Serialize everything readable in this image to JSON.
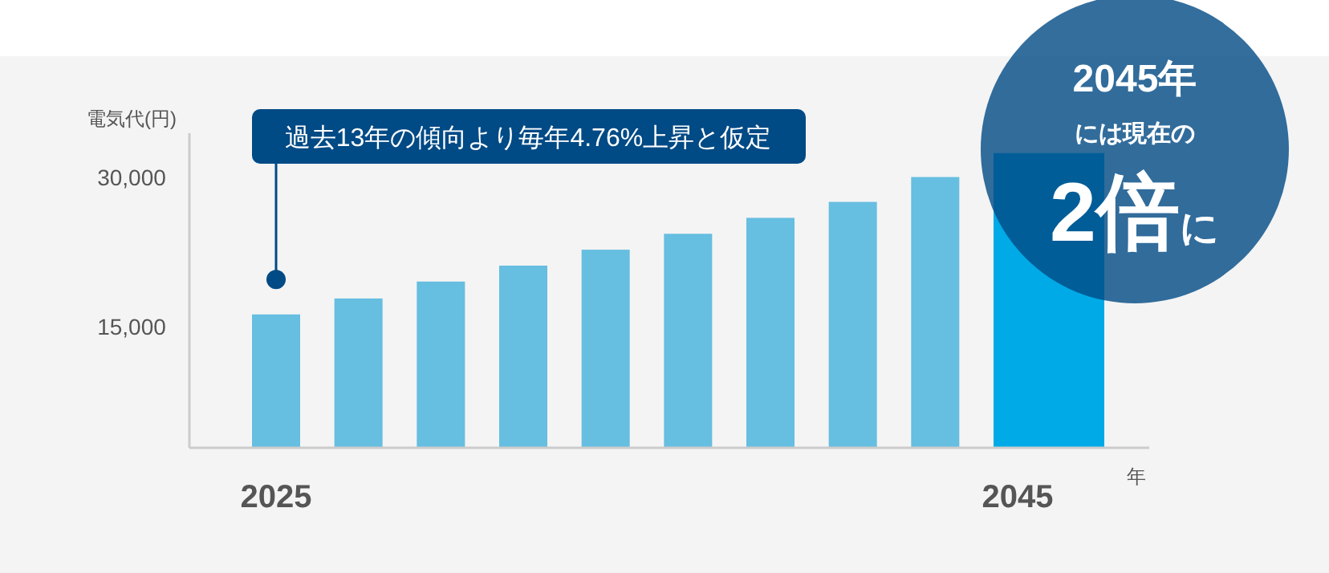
{
  "chart_data": {
    "type": "bar",
    "ylabel": "電気代(円)",
    "xlabel": "年",
    "categories": [
      "2025",
      null,
      null,
      null,
      null,
      null,
      null,
      null,
      null,
      "2045"
    ],
    "values": [
      16200,
      17800,
      19500,
      21100,
      22700,
      24300,
      25900,
      27500,
      30000,
      32400
    ],
    "colors": [
      "#66bee0",
      "#66bee0",
      "#66bee0",
      "#66bee0",
      "#66bee0",
      "#66bee0",
      "#66bee0",
      "#66bee0",
      "#66bee0",
      "#00aae6"
    ],
    "ylim": [
      2800,
      34400
    ],
    "yticks": [
      {
        "value": 15000,
        "label": "15,000"
      },
      {
        "value": 30000,
        "label": "30,000"
      }
    ],
    "grid": false,
    "annotations": [
      {
        "text": "過去13年の傾向より毎年4.76%上昇と仮定",
        "x": "2025",
        "y": 19700
      },
      "2045年",
      "には現在の",
      "2倍に"
    ]
  }
}
